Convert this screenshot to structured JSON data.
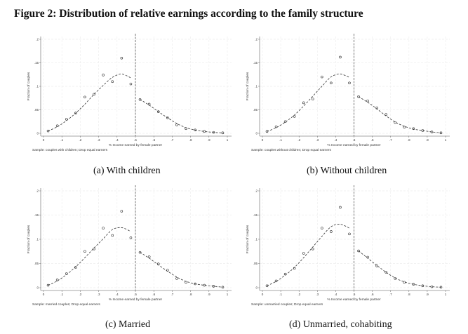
{
  "figure": {
    "title": "Figure 2: Distribution of relative earnings according to the family structure"
  },
  "chart_data": [
    {
      "type": "scatter",
      "caption": "(a)  With children",
      "xlabel": "% Income earned by female partner",
      "ylabel": "Fraction of couples",
      "note": "Sample: couples with children; Drop equal earners",
      "xlim": [
        0,
        1
      ],
      "ylim": [
        0,
        0.2
      ],
      "xticks": [
        "0",
        ".1",
        ".2",
        ".3",
        ".4",
        ".5",
        ".6",
        ".7",
        ".8",
        ".9",
        "1"
      ],
      "yticks": [
        "0",
        ".05",
        ".1",
        ".15",
        ".2"
      ],
      "grid": true,
      "reference_line_x": 0.5,
      "x": [
        0.025,
        0.075,
        0.125,
        0.175,
        0.225,
        0.275,
        0.325,
        0.375,
        0.425,
        0.475,
        0.525,
        0.575,
        0.625,
        0.675,
        0.725,
        0.775,
        0.825,
        0.875,
        0.925,
        0.975
      ],
      "values": [
        0.005,
        0.016,
        0.03,
        0.043,
        0.077,
        0.083,
        0.124,
        0.11,
        0.16,
        0.105,
        0.072,
        0.062,
        0.046,
        0.033,
        0.018,
        0.01,
        0.007,
        0.004,
        0.002,
        0.001
      ],
      "fit_left": [
        [
          0.025,
          0.005
        ],
        [
          0.075,
          0.014
        ],
        [
          0.125,
          0.027
        ],
        [
          0.175,
          0.043
        ],
        [
          0.225,
          0.062
        ],
        [
          0.275,
          0.083
        ],
        [
          0.325,
          0.102
        ],
        [
          0.375,
          0.119
        ],
        [
          0.425,
          0.126
        ],
        [
          0.475,
          0.118
        ]
      ],
      "fit_right": [
        [
          0.525,
          0.072
        ],
        [
          0.575,
          0.06
        ],
        [
          0.625,
          0.046
        ],
        [
          0.675,
          0.033
        ],
        [
          0.725,
          0.021
        ],
        [
          0.775,
          0.012
        ],
        [
          0.825,
          0.007
        ],
        [
          0.875,
          0.004
        ],
        [
          0.925,
          0.002
        ],
        [
          0.975,
          0.001
        ]
      ]
    },
    {
      "type": "scatter",
      "caption": "(b)  Without children",
      "xlabel": "% Income earned by female partner",
      "ylabel": "Fraction of couples",
      "note": "Sample: couples without children; Drop equal earners",
      "xlim": [
        0,
        1
      ],
      "ylim": [
        0,
        0.2
      ],
      "xticks": [
        "0",
        ".1",
        ".2",
        ".3",
        ".4",
        ".5",
        ".6",
        ".7",
        ".8",
        ".9",
        "1"
      ],
      "yticks": [
        "0",
        ".05",
        ".1",
        ".15",
        ".2"
      ],
      "grid": true,
      "reference_line_x": 0.5,
      "x": [
        0.025,
        0.075,
        0.125,
        0.175,
        0.225,
        0.275,
        0.325,
        0.375,
        0.425,
        0.475,
        0.525,
        0.575,
        0.625,
        0.675,
        0.725,
        0.775,
        0.825,
        0.875,
        0.925,
        0.975
      ],
      "values": [
        0.004,
        0.014,
        0.025,
        0.036,
        0.065,
        0.073,
        0.12,
        0.107,
        0.162,
        0.107,
        0.078,
        0.069,
        0.054,
        0.04,
        0.023,
        0.013,
        0.01,
        0.006,
        0.003,
        0.001
      ],
      "fit_left": [
        [
          0.025,
          0.004
        ],
        [
          0.075,
          0.012
        ],
        [
          0.125,
          0.024
        ],
        [
          0.175,
          0.039
        ],
        [
          0.225,
          0.058
        ],
        [
          0.275,
          0.079
        ],
        [
          0.325,
          0.1
        ],
        [
          0.375,
          0.12
        ],
        [
          0.425,
          0.126
        ],
        [
          0.475,
          0.119
        ]
      ],
      "fit_right": [
        [
          0.525,
          0.078
        ],
        [
          0.575,
          0.066
        ],
        [
          0.625,
          0.052
        ],
        [
          0.675,
          0.037
        ],
        [
          0.725,
          0.024
        ],
        [
          0.775,
          0.015
        ],
        [
          0.825,
          0.009
        ],
        [
          0.875,
          0.006
        ],
        [
          0.925,
          0.003
        ],
        [
          0.975,
          0.001
        ]
      ]
    },
    {
      "type": "scatter",
      "caption": "(c)  Married",
      "xlabel": "% Income earned by female partner",
      "ylabel": "Fraction of couples",
      "note": "Sample: married couples; Drop equal earners",
      "xlim": [
        0,
        1
      ],
      "ylim": [
        0,
        0.2
      ],
      "xticks": [
        "0",
        ".1",
        ".2",
        ".3",
        ".4",
        ".5",
        ".6",
        ".7",
        ".8",
        ".9",
        "1"
      ],
      "yticks": [
        "0",
        ".05",
        ".1",
        ".15",
        ".2"
      ],
      "grid": true,
      "reference_line_x": 0.5,
      "x": [
        0.025,
        0.075,
        0.125,
        0.175,
        0.225,
        0.275,
        0.325,
        0.375,
        0.425,
        0.475,
        0.525,
        0.575,
        0.625,
        0.675,
        0.725,
        0.775,
        0.825,
        0.875,
        0.925,
        0.975
      ],
      "values": [
        0.005,
        0.016,
        0.029,
        0.042,
        0.075,
        0.08,
        0.123,
        0.108,
        0.158,
        0.103,
        0.073,
        0.064,
        0.049,
        0.036,
        0.019,
        0.011,
        0.008,
        0.005,
        0.003,
        0.001
      ],
      "fit_left": [
        [
          0.025,
          0.005
        ],
        [
          0.075,
          0.014
        ],
        [
          0.125,
          0.027
        ],
        [
          0.175,
          0.043
        ],
        [
          0.225,
          0.062
        ],
        [
          0.275,
          0.082
        ],
        [
          0.325,
          0.101
        ],
        [
          0.375,
          0.12
        ],
        [
          0.425,
          0.124
        ],
        [
          0.475,
          0.116
        ]
      ],
      "fit_right": [
        [
          0.525,
          0.073
        ],
        [
          0.575,
          0.061
        ],
        [
          0.625,
          0.047
        ],
        [
          0.675,
          0.034
        ],
        [
          0.725,
          0.022
        ],
        [
          0.775,
          0.013
        ],
        [
          0.825,
          0.008
        ],
        [
          0.875,
          0.005
        ],
        [
          0.925,
          0.003
        ],
        [
          0.975,
          0.001
        ]
      ]
    },
    {
      "type": "scatter",
      "caption": "(d)  Unmarried, cohabiting",
      "xlabel": "% Income earned by female partner",
      "ylabel": "Fraction of couples",
      "note": "Sample: unmarried couples; Drop equal earners",
      "xlim": [
        0,
        1
      ],
      "ylim": [
        0,
        0.2
      ],
      "xticks": [
        "0",
        ".1",
        ".2",
        ".3",
        ".4",
        ".5",
        ".6",
        ".7",
        ".8",
        ".9",
        "1"
      ],
      "yticks": [
        "0",
        ".05",
        ".1",
        ".15",
        ".2"
      ],
      "grid": true,
      "reference_line_x": 0.5,
      "x": [
        0.025,
        0.075,
        0.125,
        0.175,
        0.225,
        0.275,
        0.325,
        0.375,
        0.425,
        0.475,
        0.525,
        0.575,
        0.625,
        0.675,
        0.725,
        0.775,
        0.825,
        0.875,
        0.925,
        0.975
      ],
      "values": [
        0.004,
        0.014,
        0.028,
        0.04,
        0.071,
        0.08,
        0.123,
        0.116,
        0.166,
        0.111,
        0.076,
        0.063,
        0.045,
        0.032,
        0.019,
        0.011,
        0.007,
        0.004,
        0.002,
        0.001
      ],
      "fit_left": [
        [
          0.025,
          0.004
        ],
        [
          0.075,
          0.013
        ],
        [
          0.125,
          0.026
        ],
        [
          0.175,
          0.042
        ],
        [
          0.225,
          0.062
        ],
        [
          0.275,
          0.084
        ],
        [
          0.325,
          0.106
        ],
        [
          0.375,
          0.126
        ],
        [
          0.425,
          0.131
        ],
        [
          0.475,
          0.123
        ]
      ],
      "fit_right": [
        [
          0.525,
          0.076
        ],
        [
          0.575,
          0.061
        ],
        [
          0.625,
          0.046
        ],
        [
          0.675,
          0.032
        ],
        [
          0.725,
          0.02
        ],
        [
          0.775,
          0.012
        ],
        [
          0.825,
          0.007
        ],
        [
          0.875,
          0.004
        ],
        [
          0.925,
          0.002
        ],
        [
          0.975,
          0.001
        ]
      ]
    }
  ]
}
